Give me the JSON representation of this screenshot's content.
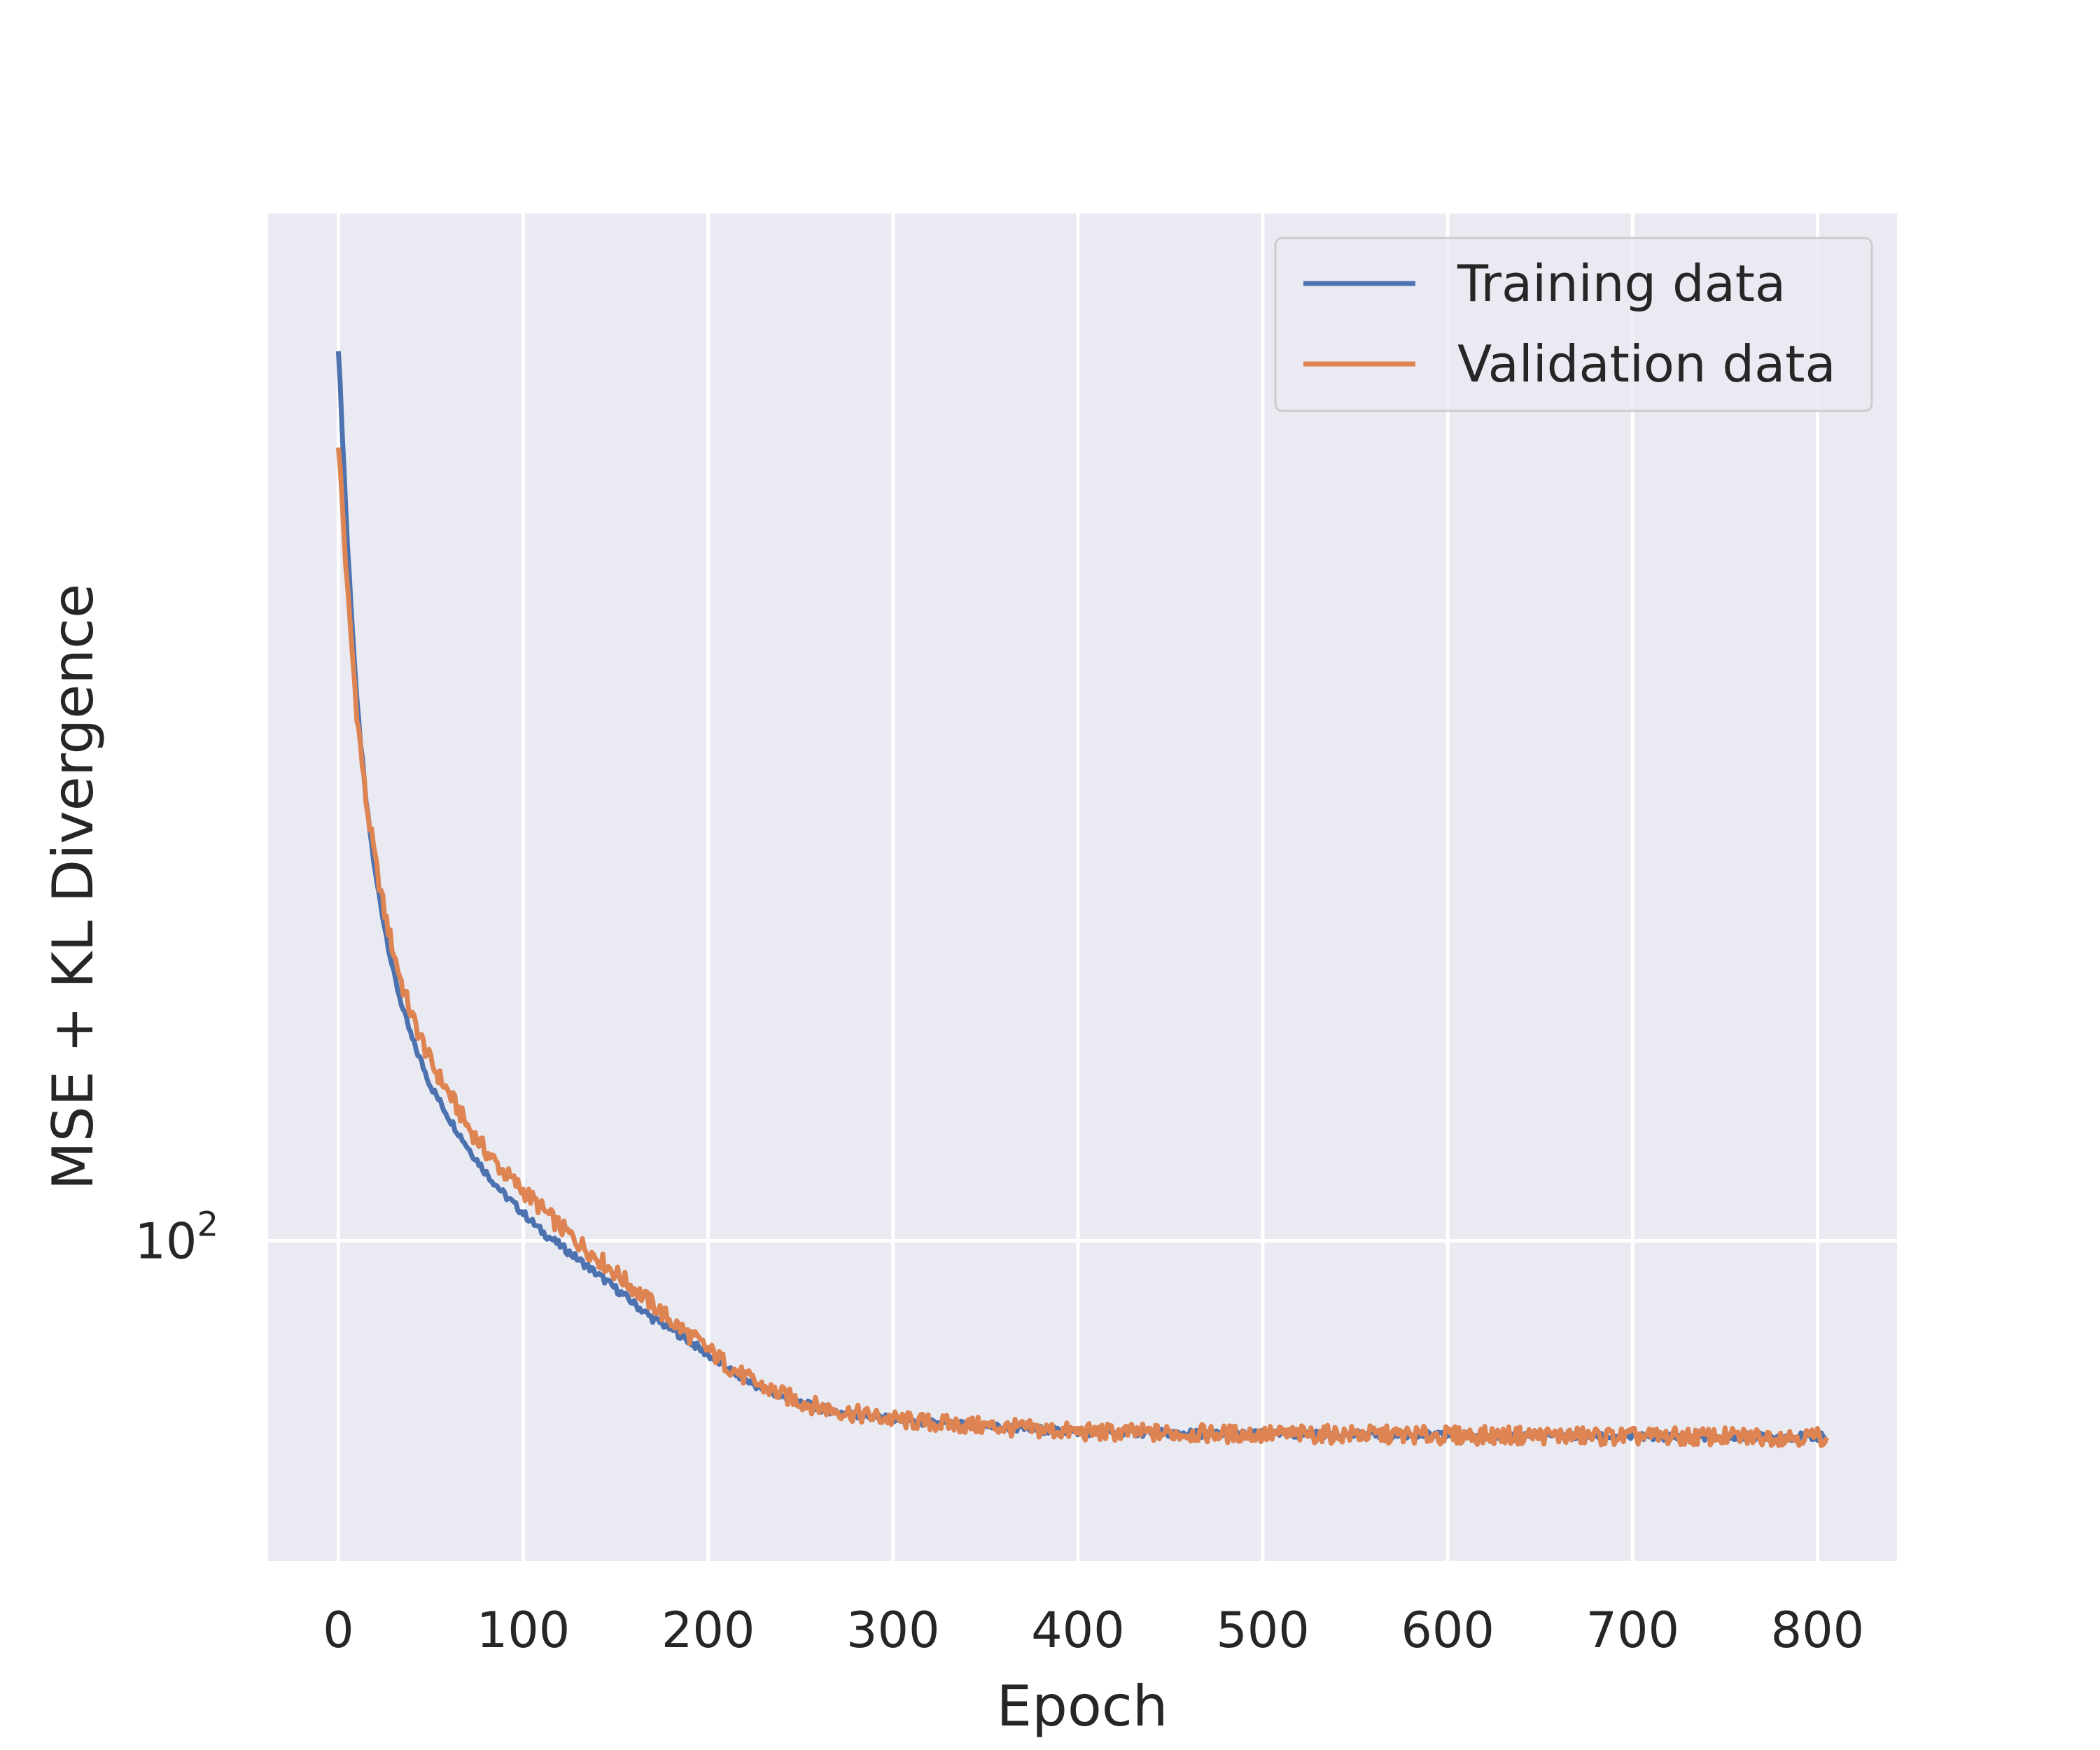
{
  "chart_data": {
    "type": "line",
    "title": "",
    "xlabel": "Epoch",
    "ylabel": "MSE + KL Divergence",
    "yscale": "log",
    "xlim": [
      -38,
      843
    ],
    "ylim": [
      71,
      300
    ],
    "x_ticks": [
      0,
      100,
      200,
      300,
      400,
      500,
      600,
      700,
      800
    ],
    "x_tick_labels": [
      "0",
      "100",
      "200",
      "300",
      "400",
      "500",
      "600",
      "700",
      "800"
    ],
    "y_ticks": [
      100
    ],
    "y_tick_labels": [
      {
        "base": "10",
        "exp": "2"
      }
    ],
    "grid": true,
    "legend_position": "upper right",
    "series": [
      {
        "name": "Training data",
        "color": "#4c72b0",
        "x": [
          0,
          5,
          10,
          15,
          20,
          25,
          30,
          35,
          40,
          50,
          60,
          70,
          80,
          90,
          100,
          110,
          120,
          130,
          140,
          150,
          160,
          170,
          180,
          190,
          200,
          210,
          220,
          230,
          240,
          250,
          260,
          280,
          300,
          320,
          340,
          360,
          380,
          400,
          450,
          500,
          550,
          600,
          650,
          700,
          750,
          805
        ],
        "y": [
          260,
          210,
          178,
          160,
          148,
          140,
          133,
          128,
          124,
          118,
          114,
          110.5,
          107.5,
          105,
          103,
          101,
          99.5,
          98,
          96.5,
          95,
          93.5,
          92,
          91,
          89.8,
          88.5,
          87.3,
          86.2,
          85.3,
          84.6,
          84.1,
          83.6,
          83,
          82.6,
          82.3,
          82.1,
          81.9,
          81.7,
          81.5,
          81.4,
          81.3,
          81.3,
          81.2,
          81.2,
          81.1,
          81.1,
          81.1
        ]
      },
      {
        "name": "Validation data",
        "color": "#dd8452",
        "x": [
          0,
          5,
          10,
          15,
          20,
          25,
          30,
          35,
          40,
          50,
          60,
          70,
          80,
          90,
          100,
          110,
          120,
          130,
          140,
          150,
          160,
          170,
          180,
          190,
          200,
          210,
          220,
          230,
          240,
          250,
          260,
          280,
          300,
          320,
          340,
          360,
          380,
          400,
          450,
          500,
          550,
          600,
          650,
          700,
          750,
          805
        ],
        "y": [
          235,
          200,
          176,
          160,
          150,
          142,
          136,
          131,
          127,
          121,
          117,
          113,
          110,
          107.5,
          105.5,
          103.5,
          101.5,
          99.8,
          98.2,
          96.6,
          95,
          93.4,
          91.8,
          90.4,
          89,
          87.6,
          86.4,
          85.5,
          84.8,
          84.2,
          83.7,
          83.1,
          82.6,
          82.3,
          82.1,
          81.9,
          81.7,
          81.5,
          81.4,
          81.3,
          81.3,
          81.2,
          81.2,
          81.1,
          81.1,
          81.1
        ]
      }
    ]
  }
}
